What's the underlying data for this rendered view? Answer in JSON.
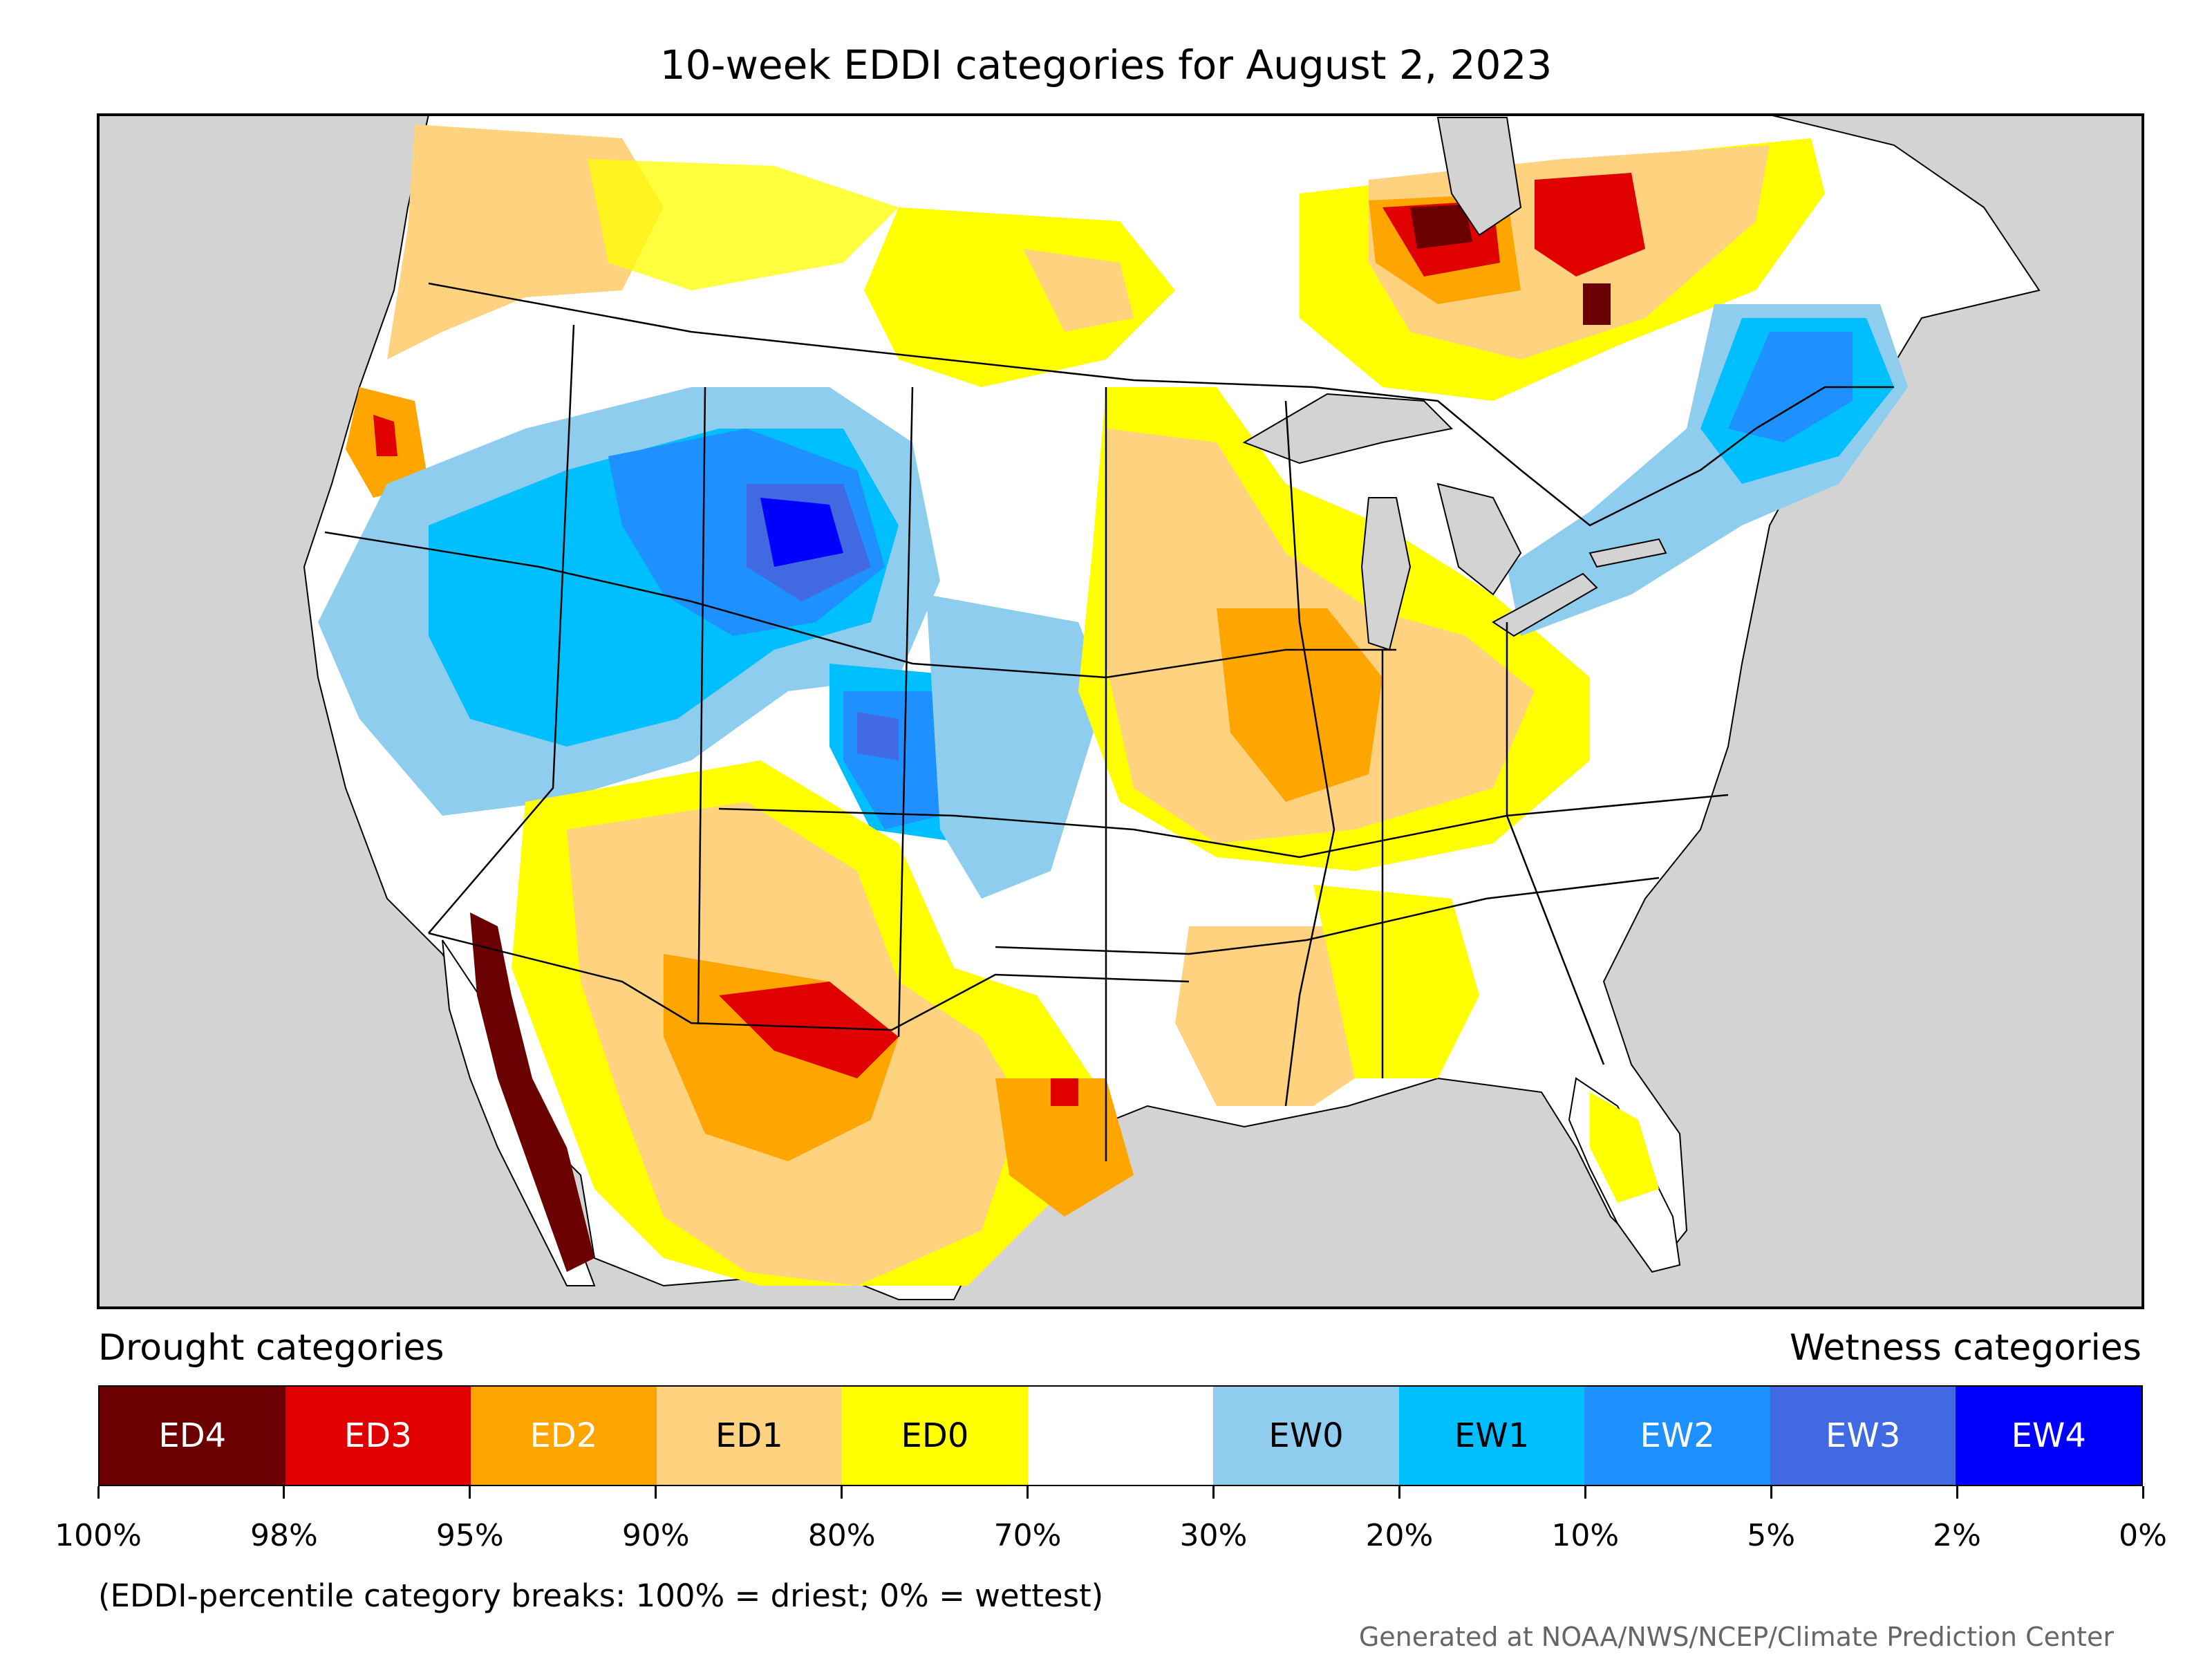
{
  "title": "10-week EDDI categories for August 2, 2023",
  "legend": {
    "left_caption": "Drought categories",
    "right_caption": "Wetness categories",
    "categories": [
      {
        "label": "ED4",
        "color": "#6b0000",
        "text_color": "#ffffff"
      },
      {
        "label": "ED3",
        "color": "#e00000",
        "text_color": "#ffffff"
      },
      {
        "label": "ED2",
        "color": "#ffa500",
        "text_color": "#ffffff"
      },
      {
        "label": "ED1",
        "color": "#ffd27f",
        "text_color": "#000000"
      },
      {
        "label": "ED0",
        "color": "#ffff00",
        "text_color": "#000000"
      },
      {
        "label": "",
        "color": "#ffffff",
        "text_color": "#000000"
      },
      {
        "label": "EW0",
        "color": "#8fcdee",
        "text_color": "#000000"
      },
      {
        "label": "EW1",
        "color": "#00bfff",
        "text_color": "#000000"
      },
      {
        "label": "EW2",
        "color": "#1e90ff",
        "text_color": "#ffffff"
      },
      {
        "label": "EW3",
        "color": "#4169e1",
        "text_color": "#ffffff"
      },
      {
        "label": "EW4",
        "color": "#0000ff",
        "text_color": "#ffffff"
      }
    ],
    "breaks": [
      "100%",
      "98%",
      "95%",
      "90%",
      "80%",
      "70%",
      "30%",
      "20%",
      "10%",
      "5%",
      "2%",
      "0%"
    ]
  },
  "note": "(EDDI-percentile category breaks: 100% = driest; 0% = wettest)",
  "credit": "Generated at NOAA/NWS/NCEP/Climate Prediction Center",
  "map_colors": {
    "ocean": "#d3d3d3",
    "land": "#ffffff",
    "boundary": "#000000"
  }
}
